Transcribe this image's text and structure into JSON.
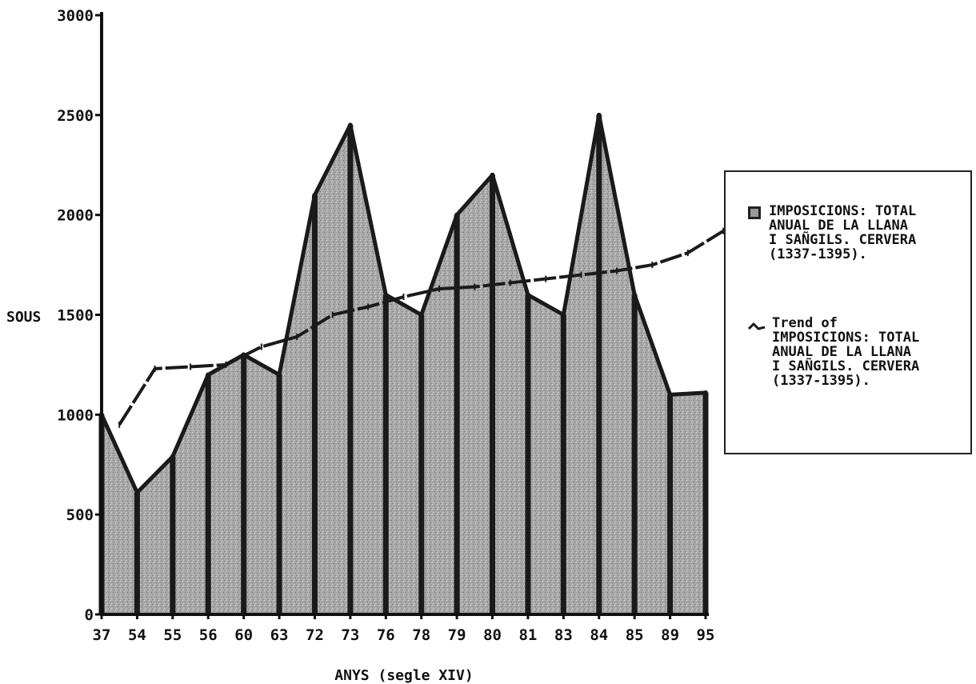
{
  "chart_data": {
    "type": "area",
    "title": "",
    "xlabel": "ANYS (segle XIV)",
    "ylabel": "SOUS",
    "ylim": [
      0,
      3000
    ],
    "yticks": [
      "0",
      "500",
      "1000",
      "1500",
      "2000",
      "2500",
      "3000"
    ],
    "categories": [
      "37",
      "54",
      "55",
      "56",
      "60",
      "63",
      "72",
      "73",
      "76",
      "78",
      "79",
      "80",
      "81",
      "83",
      "84",
      "85",
      "89",
      "95"
    ],
    "series": [
      {
        "name": "IMPOSICIONS: TOTAL ANUAL DE LA LLANA I SANGILS. CERVERA (1337-1395).",
        "kind": "area",
        "values": [
          1000,
          610,
          790,
          1200,
          1300,
          1200,
          2100,
          2450,
          1600,
          1500,
          2000,
          2200,
          1600,
          1500,
          2500,
          1600,
          1100,
          1110
        ]
      },
      {
        "name": "Trend of IMPOSICIONS: TOTAL ANUAL DE LA LLANA I SANGILS. CERVERA (1337-1395).",
        "kind": "trend",
        "values": [
          950,
          1230,
          1240,
          1250,
          1340,
          1390,
          1500,
          1540,
          1590,
          1630,
          1640,
          1660,
          1680,
          1700,
          1720,
          1750,
          1810,
          1920
        ]
      }
    ],
    "legend_position": "right",
    "grid": false
  },
  "legend": {
    "entry_area": "IMPOSICIONS: TOTAL\nANUAL DE LA LLANA\nI SAÑGILS. CERVERA\n(1337-1395).",
    "entry_trend": "Trend of\nIMPOSICIONS: TOTAL\nANUAL DE LA LLANA\nI SAÑGILS. CERVERA\n(1337-1395)."
  },
  "colors": {
    "area_fill": "#a6a6a6",
    "line": "#1a1a1a",
    "axis": "#111111"
  }
}
